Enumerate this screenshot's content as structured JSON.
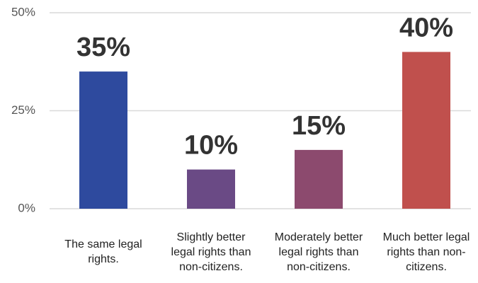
{
  "chart_data": {
    "type": "bar",
    "categories": [
      "The same legal rights.",
      "Slightly better legal rights than non-citizens.",
      "Moderately better legal rights than non-citizens.",
      "Much better legal rights than non-citizens."
    ],
    "values": [
      35,
      10,
      15,
      40
    ],
    "value_labels": [
      "35%",
      "10%",
      "15%",
      "40%"
    ],
    "colors": [
      "#2e4a9e",
      "#6a4a85",
      "#8c4a6e",
      "#c0504d"
    ],
    "ylim": [
      0,
      50
    ],
    "yticks": [
      {
        "value": 0,
        "label": "0%"
      },
      {
        "value": 25,
        "label": "25%"
      },
      {
        "value": 50,
        "label": "50%"
      }
    ],
    "grid": true
  }
}
